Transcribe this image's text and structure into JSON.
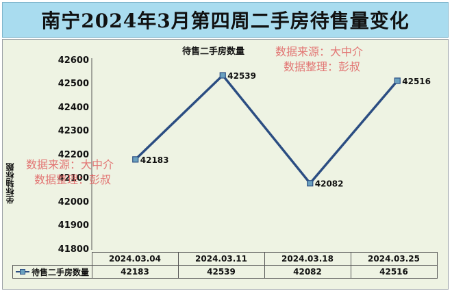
{
  "header": {
    "title": "南宁2024年3月第四周二手房待售量变化"
  },
  "watermark": {
    "line1": "数据来源：大中介",
    "line2": "数据整理：彭叔"
  },
  "colors": {
    "banner_bg": "#a9dcef",
    "plot_bg": "#eef3e3",
    "line": "#2b4d82",
    "marker_fill": "#6aa0bf",
    "watermark": "#e06060"
  },
  "chart_data": {
    "type": "line",
    "title": "待售二手房数量",
    "xlabel": "",
    "ylabel": "坐标轴标题",
    "categories": [
      "2024.03.04",
      "2024.03.11",
      "2024.03.18",
      "2024.03.25"
    ],
    "series": [
      {
        "name": "待售二手房数量",
        "values": [
          42183,
          42539,
          42082,
          42516
        ]
      }
    ],
    "data_labels": [
      "42183",
      "42539",
      "42082",
      "42516"
    ],
    "ylim": [
      41800,
      42600
    ],
    "yticks": [
      "42600",
      "42500",
      "42400",
      "42300",
      "42200",
      "42100",
      "42000",
      "41900",
      "41800"
    ],
    "grid": false,
    "legend": "data-table",
    "data_table": {
      "series_label": "待售二手房数量",
      "values": [
        "42183",
        "42539",
        "42082",
        "42516"
      ]
    }
  }
}
